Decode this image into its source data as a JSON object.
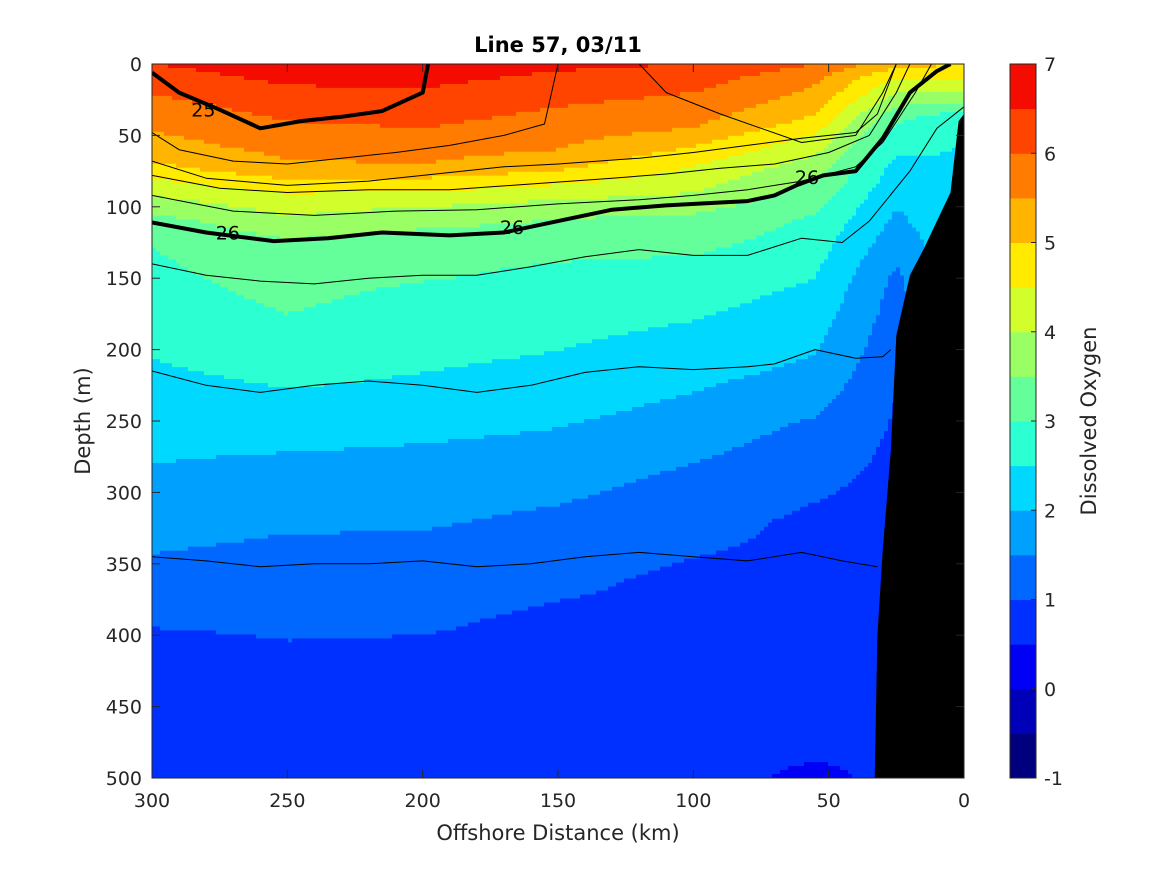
{
  "chart_data": {
    "type": "heatmap",
    "title": "Line 57, 03/11",
    "xlabel": "Offshore Distance (km)",
    "ylabel": "Depth (m)",
    "xlim": [
      300,
      0
    ],
    "ylim": [
      0,
      500
    ],
    "x_direction": "reversed",
    "y_direction": "reversed",
    "x_ticks": [
      "300",
      "250",
      "200",
      "150",
      "100",
      "50",
      "0"
    ],
    "y_ticks": [
      "0",
      "50",
      "100",
      "150",
      "200",
      "250",
      "300",
      "350",
      "400",
      "450",
      "500"
    ],
    "colorbar": {
      "label": "Dissolved Oxygen",
      "range": [
        -1,
        7
      ],
      "step": 0.5,
      "ticks": [
        "-1",
        "0",
        "1",
        "2",
        "3",
        "4",
        "5",
        "6",
        "7"
      ],
      "colors": [
        "#00007f",
        "#0000b8",
        "#0000f5",
        "#0030ff",
        "#0068ff",
        "#00a0ff",
        "#00d8ff",
        "#2cffd2",
        "#64ff9a",
        "#9aff64",
        "#d2ff2c",
        "#ffea00",
        "#ffb400",
        "#ff7c00",
        "#ff4400",
        "#f50c00",
        "#b80000"
      ]
    },
    "oxygen_profiles": [
      {
        "x": 300,
        "depths": [
          0,
          30,
          58,
          75,
          85,
          98,
          110,
          128,
          180,
          220,
          295,
          355,
          405,
          500
        ],
        "values": [
          6.5,
          5.8,
          5.3,
          4.8,
          4.3,
          3.8,
          3.3,
          3.0,
          2.7,
          2.4,
          1.9,
          1.4,
          0.9,
          0.8
        ]
      },
      {
        "x": 250,
        "depths": [
          0,
          40,
          72,
          85,
          95,
          110,
          125,
          200,
          245,
          290,
          355,
          420,
          500
        ],
        "values": [
          6.8,
          6.0,
          5.4,
          4.8,
          4.3,
          3.9,
          3.4,
          2.8,
          2.3,
          1.8,
          1.3,
          0.9,
          0.8
        ]
      },
      {
        "x": 200,
        "depths": [
          0,
          45,
          70,
          80,
          90,
          100,
          115,
          160,
          230,
          275,
          340,
          415,
          500
        ],
        "values": [
          6.8,
          6.0,
          5.5,
          5.0,
          4.5,
          4.0,
          3.5,
          2.9,
          2.4,
          1.9,
          1.4,
          0.9,
          0.8
        ]
      },
      {
        "x": 150,
        "depths": [
          0,
          30,
          60,
          75,
          85,
          95,
          108,
          145,
          215,
          265,
          320,
          390,
          500
        ],
        "values": [
          6.6,
          6.0,
          5.5,
          5.0,
          4.5,
          4.0,
          3.5,
          2.9,
          2.4,
          1.9,
          1.4,
          0.9,
          0.8
        ]
      },
      {
        "x": 100,
        "depths": [
          0,
          20,
          45,
          58,
          72,
          90,
          105,
          140,
          190,
          240,
          290,
          360,
          500
        ],
        "values": [
          6.5,
          6.0,
          5.5,
          5.0,
          4.5,
          4.0,
          3.5,
          2.9,
          2.4,
          1.9,
          1.4,
          0.9,
          0.8
        ]
      },
      {
        "x": 55,
        "depths": [
          0,
          10,
          30,
          42,
          55,
          70,
          90,
          110,
          160,
          215,
          255,
          320,
          470,
          500
        ],
        "values": [
          6.0,
          5.6,
          5.2,
          4.8,
          4.3,
          3.8,
          3.3,
          2.9,
          2.4,
          1.9,
          1.4,
          0.9,
          0.8,
          0.3
        ]
      },
      {
        "x": 25,
        "depths": [
          0,
          10,
          25,
          35,
          50,
          75,
          110,
          150,
          230,
          320,
          500
        ],
        "values": [
          5.2,
          4.5,
          3.8,
          3.2,
          2.8,
          2.3,
          1.9,
          1.4,
          1.0,
          0.8,
          0.7
        ]
      },
      {
        "x": 0,
        "depths": [
          0,
          20,
          40,
          500
        ],
        "values": [
          5.0,
          4.0,
          2.5,
          2.0
        ]
      }
    ],
    "bathymetry": [
      {
        "x": 33,
        "depth": 500
      },
      {
        "x": 32,
        "depth": 400
      },
      {
        "x": 30,
        "depth": 340
      },
      {
        "x": 27,
        "depth": 270
      },
      {
        "x": 25,
        "depth": 190
      },
      {
        "x": 20,
        "depth": 148
      },
      {
        "x": 15,
        "depth": 130
      },
      {
        "x": 10,
        "depth": 110
      },
      {
        "x": 5,
        "depth": 90
      },
      {
        "x": 2,
        "depth": 40
      },
      {
        "x": 0,
        "depth": 35
      }
    ],
    "density_contours": [
      {
        "label": "25",
        "bold": true,
        "points": [
          [
            300,
            6
          ],
          [
            290,
            20
          ],
          [
            275,
            32
          ],
          [
            260,
            45
          ],
          [
            245,
            40
          ],
          [
            230,
            37
          ],
          [
            215,
            33
          ],
          [
            200,
            20
          ],
          [
            198,
            0
          ]
        ]
      },
      {
        "label": "",
        "bold": false,
        "points": [
          [
            300,
            48
          ],
          [
            290,
            60
          ],
          [
            270,
            68
          ],
          [
            250,
            70
          ],
          [
            230,
            66
          ],
          [
            210,
            62
          ],
          [
            190,
            57
          ],
          [
            170,
            50
          ],
          [
            155,
            42
          ],
          [
            150,
            0
          ]
        ]
      },
      {
        "label": "",
        "bold": false,
        "points": [
          [
            120,
            0
          ],
          [
            110,
            20
          ],
          [
            90,
            35
          ],
          [
            75,
            45
          ],
          [
            60,
            55
          ],
          [
            40,
            50
          ],
          [
            30,
            20
          ],
          [
            25,
            0
          ]
        ]
      },
      {
        "label": "",
        "bold": false,
        "points": [
          [
            300,
            68
          ],
          [
            280,
            80
          ],
          [
            250,
            85
          ],
          [
            220,
            82
          ],
          [
            200,
            78
          ],
          [
            170,
            72
          ],
          [
            150,
            70
          ],
          [
            120,
            66
          ],
          [
            100,
            62
          ],
          [
            80,
            57
          ],
          [
            60,
            52
          ],
          [
            40,
            48
          ],
          [
            32,
            35
          ],
          [
            25,
            0
          ]
        ]
      },
      {
        "label": "",
        "bold": false,
        "points": [
          [
            300,
            78
          ],
          [
            275,
            87
          ],
          [
            250,
            90
          ],
          [
            220,
            88
          ],
          [
            190,
            88
          ],
          [
            160,
            84
          ],
          [
            130,
            80
          ],
          [
            110,
            77
          ],
          [
            90,
            73
          ],
          [
            70,
            70
          ],
          [
            50,
            62
          ],
          [
            35,
            50
          ],
          [
            25,
            20
          ],
          [
            20,
            0
          ]
        ]
      },
      {
        "label": "",
        "bold": false,
        "points": [
          [
            300,
            92
          ],
          [
            270,
            103
          ],
          [
            240,
            106
          ],
          [
            210,
            103
          ],
          [
            180,
            102
          ],
          [
            150,
            98
          ],
          [
            120,
            95
          ],
          [
            100,
            92
          ],
          [
            80,
            88
          ],
          [
            60,
            82
          ],
          [
            40,
            72
          ],
          [
            30,
            55
          ],
          [
            18,
            20
          ],
          [
            12,
            0
          ]
        ]
      },
      {
        "label": "26",
        "bold": true,
        "points": [
          [
            300,
            111
          ],
          [
            280,
            118
          ],
          [
            255,
            124
          ],
          [
            235,
            122
          ],
          [
            215,
            118
          ],
          [
            190,
            120
          ],
          [
            170,
            118
          ],
          [
            150,
            110
          ],
          [
            130,
            102
          ],
          [
            110,
            99
          ],
          [
            90,
            97
          ],
          [
            80,
            96
          ],
          [
            70,
            92
          ],
          [
            62,
            85
          ],
          [
            52,
            78
          ],
          [
            40,
            75
          ],
          [
            30,
            52
          ],
          [
            20,
            20
          ],
          [
            10,
            5
          ],
          [
            5,
            0
          ]
        ]
      },
      {
        "label": "",
        "bold": false,
        "points": [
          [
            300,
            140
          ],
          [
            280,
            148
          ],
          [
            260,
            152
          ],
          [
            240,
            154
          ],
          [
            220,
            150
          ],
          [
            200,
            148
          ],
          [
            180,
            148
          ],
          [
            160,
            142
          ],
          [
            140,
            135
          ],
          [
            120,
            130
          ],
          [
            100,
            134
          ],
          [
            80,
            134
          ],
          [
            60,
            122
          ],
          [
            45,
            125
          ],
          [
            35,
            110
          ],
          [
            20,
            75
          ],
          [
            10,
            45
          ],
          [
            0,
            30
          ]
        ]
      },
      {
        "label": "",
        "bold": false,
        "points": [
          [
            300,
            215
          ],
          [
            280,
            225
          ],
          [
            260,
            230
          ],
          [
            240,
            225
          ],
          [
            220,
            222
          ],
          [
            200,
            225
          ],
          [
            180,
            230
          ],
          [
            160,
            225
          ],
          [
            140,
            216
          ],
          [
            120,
            212
          ],
          [
            100,
            214
          ],
          [
            80,
            212
          ],
          [
            70,
            210
          ],
          [
            55,
            200
          ],
          [
            40,
            206
          ],
          [
            30,
            205
          ],
          [
            27,
            200
          ]
        ]
      },
      {
        "label": "",
        "bold": false,
        "points": [
          [
            300,
            345
          ],
          [
            280,
            348
          ],
          [
            260,
            352
          ],
          [
            240,
            350
          ],
          [
            220,
            350
          ],
          [
            200,
            348
          ],
          [
            180,
            352
          ],
          [
            160,
            350
          ],
          [
            140,
            345
          ],
          [
            120,
            342
          ],
          [
            100,
            345
          ],
          [
            80,
            348
          ],
          [
            60,
            342
          ],
          [
            45,
            348
          ],
          [
            32,
            352
          ]
        ]
      }
    ],
    "contour_labels": [
      {
        "text": "25",
        "x": 281,
        "depth": 32
      },
      {
        "text": "26",
        "x": 272,
        "depth": 118
      },
      {
        "text": "26",
        "x": 167,
        "depth": 114
      },
      {
        "text": "26",
        "x": 58,
        "depth": 79
      }
    ],
    "grid": false,
    "legend": "colorbar-right"
  }
}
